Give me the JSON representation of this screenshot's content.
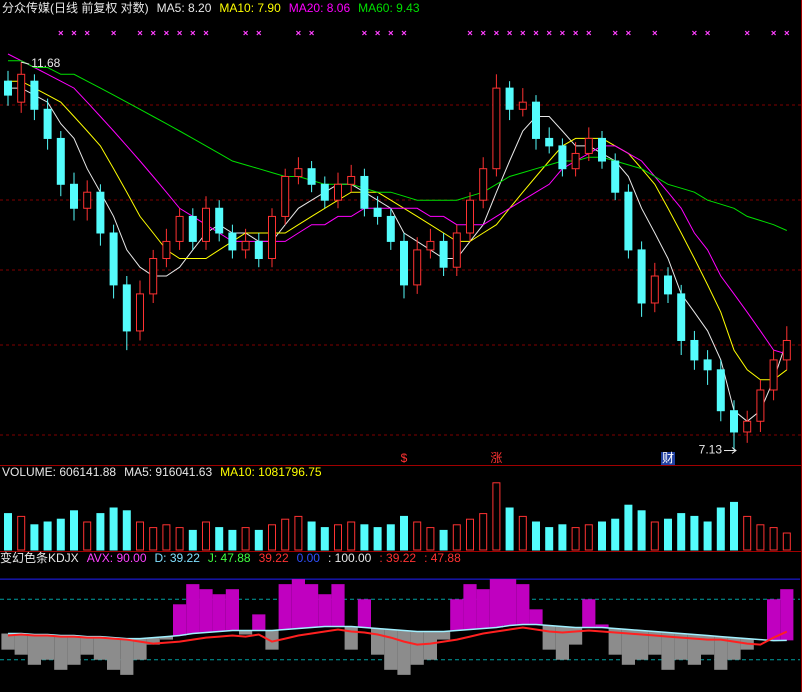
{
  "chart_data": [
    {
      "type": "candlestick",
      "title": "分众传媒(日线 前复权 对数)",
      "log_scale": true,
      "ylim": [
        7.0,
        12.4
      ],
      "up_color": "#ff3232",
      "down_color": "#54fcfc",
      "open": [
        11.4,
        11.1,
        11.4,
        11.0,
        10.6,
        10.0,
        9.7,
        9.9,
        9.4,
        8.8,
        8.3,
        8.7,
        9.1,
        9.3,
        9.6,
        9.3,
        9.7,
        9.4,
        9.2,
        9.3,
        9.1,
        9.6,
        10.1,
        10.2,
        10.0,
        9.8,
        10.0,
        10.1,
        9.7,
        9.6,
        9.3,
        8.8,
        9.2,
        9.3,
        9.0,
        9.4,
        9.8,
        10.2,
        11.3,
        11.0,
        11.1,
        10.6,
        10.5,
        10.2,
        10.4,
        10.6,
        10.3,
        9.9,
        9.2,
        8.6,
        8.9,
        8.7,
        8.2,
        8.0,
        7.9,
        7.5,
        7.3,
        7.4,
        7.7,
        8.0
      ],
      "high": [
        11.55,
        11.68,
        11.5,
        11.15,
        10.7,
        10.15,
        10.05,
        10.0,
        9.5,
        8.9,
        8.85,
        9.2,
        9.45,
        9.7,
        9.7,
        9.85,
        9.8,
        9.5,
        9.45,
        9.4,
        9.7,
        10.2,
        10.35,
        10.3,
        10.1,
        10.15,
        10.25,
        10.2,
        9.85,
        9.7,
        9.4,
        9.35,
        9.45,
        9.4,
        9.5,
        9.9,
        10.35,
        11.5,
        11.4,
        11.3,
        11.2,
        10.75,
        10.6,
        10.55,
        10.75,
        10.7,
        10.4,
        10.0,
        9.3,
        9.05,
        9.0,
        8.8,
        8.3,
        8.1,
        8.0,
        7.6,
        7.5,
        7.8,
        8.1,
        8.35
      ],
      "low": [
        11.05,
        10.95,
        10.85,
        10.45,
        9.85,
        9.55,
        9.55,
        9.25,
        8.65,
        8.1,
        8.2,
        8.6,
        9.0,
        9.2,
        9.2,
        9.2,
        9.3,
        9.1,
        9.1,
        9.0,
        9.0,
        9.5,
        10.0,
        9.9,
        9.7,
        9.7,
        9.9,
        9.6,
        9.5,
        9.2,
        8.65,
        8.7,
        9.1,
        8.9,
        8.9,
        9.3,
        9.7,
        10.1,
        10.85,
        10.9,
        10.45,
        10.4,
        10.1,
        10.1,
        10.3,
        10.2,
        9.8,
        9.1,
        8.45,
        8.5,
        8.6,
        8.05,
        7.9,
        7.75,
        7.4,
        7.13,
        7.2,
        7.3,
        7.6,
        7.9
      ],
      "close": [
        11.2,
        11.5,
        11.0,
        10.6,
        10.0,
        9.7,
        9.9,
        9.4,
        8.8,
        8.3,
        8.7,
        9.1,
        9.3,
        9.6,
        9.3,
        9.7,
        9.4,
        9.2,
        9.3,
        9.1,
        9.6,
        10.1,
        10.2,
        10.0,
        9.8,
        10.0,
        10.1,
        9.7,
        9.6,
        9.3,
        8.8,
        9.2,
        9.3,
        9.0,
        9.4,
        9.8,
        10.2,
        11.3,
        11.0,
        11.1,
        10.6,
        10.5,
        10.2,
        10.4,
        10.6,
        10.3,
        9.9,
        9.2,
        8.6,
        8.9,
        8.7,
        8.2,
        8.0,
        7.9,
        7.5,
        7.3,
        7.4,
        7.7,
        8.0,
        8.2
      ],
      "series": [
        {
          "name": "MA5: 8.20",
          "color": "#e8e8e8",
          "values": [
            11.3,
            11.3,
            11.2,
            11.1,
            10.8,
            10.6,
            10.2,
            9.9,
            9.6,
            9.2,
            9.0,
            8.9,
            8.9,
            9.0,
            9.2,
            9.4,
            9.5,
            9.4,
            9.4,
            9.3,
            9.3,
            9.5,
            9.7,
            9.8,
            9.9,
            10.0,
            10.0,
            9.9,
            9.8,
            9.7,
            9.4,
            9.3,
            9.2,
            9.1,
            9.1,
            9.3,
            9.5,
            9.9,
            10.3,
            10.7,
            10.9,
            10.9,
            10.7,
            10.5,
            10.5,
            10.4,
            10.3,
            10.1,
            9.7,
            9.4,
            9.1,
            8.7,
            8.5,
            8.3,
            8.0,
            7.5,
            7.4,
            7.5,
            7.8,
            8.2
          ]
        },
        {
          "name": "MA10: 7.90",
          "color": "#ffff00",
          "values": [
            11.4,
            11.4,
            11.3,
            11.2,
            11.1,
            10.9,
            10.7,
            10.5,
            10.2,
            9.9,
            9.6,
            9.4,
            9.2,
            9.1,
            9.1,
            9.1,
            9.2,
            9.3,
            9.4,
            9.4,
            9.4,
            9.4,
            9.5,
            9.6,
            9.7,
            9.8,
            9.9,
            9.9,
            9.9,
            9.8,
            9.7,
            9.6,
            9.5,
            9.4,
            9.3,
            9.3,
            9.4,
            9.5,
            9.7,
            9.9,
            10.1,
            10.3,
            10.5,
            10.6,
            10.6,
            10.6,
            10.5,
            10.4,
            10.2,
            10.0,
            9.7,
            9.4,
            9.1,
            8.8,
            8.5,
            8.1,
            7.9,
            7.8,
            7.8,
            7.9
          ]
        },
        {
          "name": "MA20: 8.06",
          "color": "#ff00ff",
          "values": [
            11.8,
            11.7,
            11.6,
            11.5,
            11.4,
            11.3,
            11.1,
            10.9,
            10.7,
            10.5,
            10.3,
            10.1,
            9.9,
            9.7,
            9.6,
            9.5,
            9.4,
            9.3,
            9.3,
            9.3,
            9.3,
            9.3,
            9.4,
            9.5,
            9.5,
            9.6,
            9.6,
            9.7,
            9.7,
            9.7,
            9.7,
            9.7,
            9.6,
            9.6,
            9.5,
            9.5,
            9.5,
            9.6,
            9.7,
            9.8,
            9.9,
            10.0,
            10.2,
            10.3,
            10.4,
            10.5,
            10.5,
            10.4,
            10.3,
            10.1,
            9.9,
            9.7,
            9.4,
            9.2,
            8.9,
            8.7,
            8.5,
            8.3,
            8.1,
            8.06
          ]
        },
        {
          "name": "MA60: 9.43",
          "color": "#00e000",
          "values": [
            11.7,
            11.7,
            11.6,
            11.6,
            11.5,
            11.5,
            11.4,
            11.3,
            11.2,
            11.1,
            11.0,
            10.9,
            10.8,
            10.7,
            10.6,
            10.5,
            10.4,
            10.3,
            10.25,
            10.2,
            10.15,
            10.1,
            10.1,
            10.05,
            10.0,
            10.0,
            10.0,
            9.95,
            9.9,
            9.9,
            9.85,
            9.8,
            9.8,
            9.8,
            9.8,
            9.85,
            9.9,
            10.0,
            10.1,
            10.15,
            10.2,
            10.25,
            10.3,
            10.3,
            10.35,
            10.35,
            10.3,
            10.25,
            10.2,
            10.1,
            10.0,
            9.95,
            9.9,
            9.8,
            9.75,
            9.7,
            9.6,
            9.55,
            9.5,
            9.43
          ]
        }
      ],
      "annotations": [
        {
          "text": "11.68",
          "index": 1,
          "at": "high"
        },
        {
          "text": "7.13",
          "index": 55,
          "at": "low"
        }
      ],
      "event_labels": [
        {
          "text": "$",
          "index": 30,
          "color": "#ff3232"
        },
        {
          "text": "涨",
          "index": 37,
          "color": "#ff3232"
        },
        {
          "text": "财",
          "index": 50,
          "color": "#ffffff"
        }
      ],
      "signal_indices": [
        4,
        5,
        6,
        8,
        10,
        11,
        12,
        13,
        14,
        15,
        18,
        19,
        22,
        23,
        27,
        28,
        29,
        30,
        35,
        36,
        37,
        38,
        39,
        40,
        41,
        42,
        43,
        44,
        46,
        47,
        49,
        52,
        53,
        56,
        58,
        59
      ],
      "signal_color": "#ff40ff"
    },
    {
      "type": "bar",
      "legend": [
        {
          "text": "VOLUME: 606141.88",
          "color": "#e8e8e8"
        },
        {
          "text": "MA5: 916041.63",
          "color": "#e8e8e8"
        },
        {
          "text": "MA10: 1081796.75",
          "color": "#ffff00"
        }
      ],
      "ylim": [
        0,
        2500000
      ],
      "values": [
        1300000,
        1200000,
        900000,
        1000000,
        1100000,
        1400000,
        1000000,
        1300000,
        1500000,
        1400000,
        1000000,
        800000,
        900000,
        800000,
        700000,
        1000000,
        800000,
        700000,
        800000,
        700000,
        900000,
        1100000,
        1200000,
        1000000,
        800000,
        900000,
        1000000,
        900000,
        800000,
        900000,
        1200000,
        1000000,
        800000,
        700000,
        900000,
        1100000,
        1300000,
        2400000,
        1500000,
        1200000,
        1000000,
        800000,
        900000,
        800000,
        900000,
        1000000,
        1100000,
        1600000,
        1400000,
        1000000,
        1100000,
        1300000,
        1200000,
        1000000,
        1500000,
        1700000,
        1200000,
        900000,
        800000,
        606141.88
      ]
    },
    {
      "type": "kdj",
      "title": "变幻色条KDJX",
      "ylim": [
        -12,
        112
      ],
      "series": [
        {
          "name": "AVX: 90.00",
          "color": "#c000c0",
          "below_color": "#8c8c8c",
          "values": [
            30,
            25,
            15,
            20,
            10,
            15,
            25,
            20,
            10,
            5,
            20,
            35,
            40,
            75,
            95,
            90,
            85,
            90,
            45,
            65,
            30,
            95,
            100,
            95,
            85,
            95,
            30,
            80,
            25,
            10,
            5,
            15,
            20,
            40,
            80,
            95,
            90,
            100,
            100,
            95,
            70,
            30,
            20,
            35,
            80,
            55,
            25,
            15,
            20,
            25,
            10,
            20,
            15,
            25,
            10,
            20,
            30,
            40,
            80,
            90
          ]
        },
        {
          "name": "D: 39.22",
          "color": "#a0f0ff",
          "values": [
            46,
            46,
            45,
            45,
            44,
            44,
            43,
            43,
            42,
            41,
            41,
            42,
            43,
            44,
            46,
            47,
            48,
            49,
            49,
            49,
            49,
            50,
            51,
            52,
            53,
            53,
            53,
            52,
            51,
            50,
            49,
            48,
            48,
            48,
            49,
            50,
            51,
            52,
            54,
            55,
            55,
            54,
            53,
            52,
            52,
            52,
            51,
            50,
            49,
            48,
            47,
            46,
            45,
            44,
            43,
            42,
            41,
            40,
            39,
            39.22
          ]
        },
        {
          "name": "J: 47.88",
          "color": "#ff2020",
          "values": [
            44,
            45,
            44,
            44,
            43,
            43,
            42,
            42,
            41,
            40,
            38,
            36,
            37,
            38,
            40,
            42,
            43,
            44,
            43,
            45,
            38,
            41,
            44,
            46,
            48,
            50,
            48,
            47,
            45,
            42,
            38,
            35,
            36,
            38,
            40,
            43,
            46,
            48,
            50,
            52,
            50,
            48,
            47,
            48,
            49,
            48,
            47,
            46,
            45,
            44,
            43,
            42,
            41,
            40,
            40,
            38,
            36,
            35,
            42,
            47.88
          ]
        }
      ],
      "extra_labels": [
        {
          "text": "39.22",
          "color": "#ff3232"
        },
        {
          "text": "0.00",
          "color": "#3050ff"
        },
        {
          "text": ": 100.00",
          "color": "#e8e8e8"
        },
        {
          "text": ": 39.22",
          "color": "#ff3232"
        },
        {
          "text": ": 47.88",
          "color": "#ff3232"
        }
      ],
      "levels": [
        {
          "value": 100,
          "color": "#2020ff"
        },
        {
          "value": 80,
          "color": "#00a0a0"
        },
        {
          "value": 20,
          "color": "#00a0a0"
        }
      ]
    }
  ]
}
